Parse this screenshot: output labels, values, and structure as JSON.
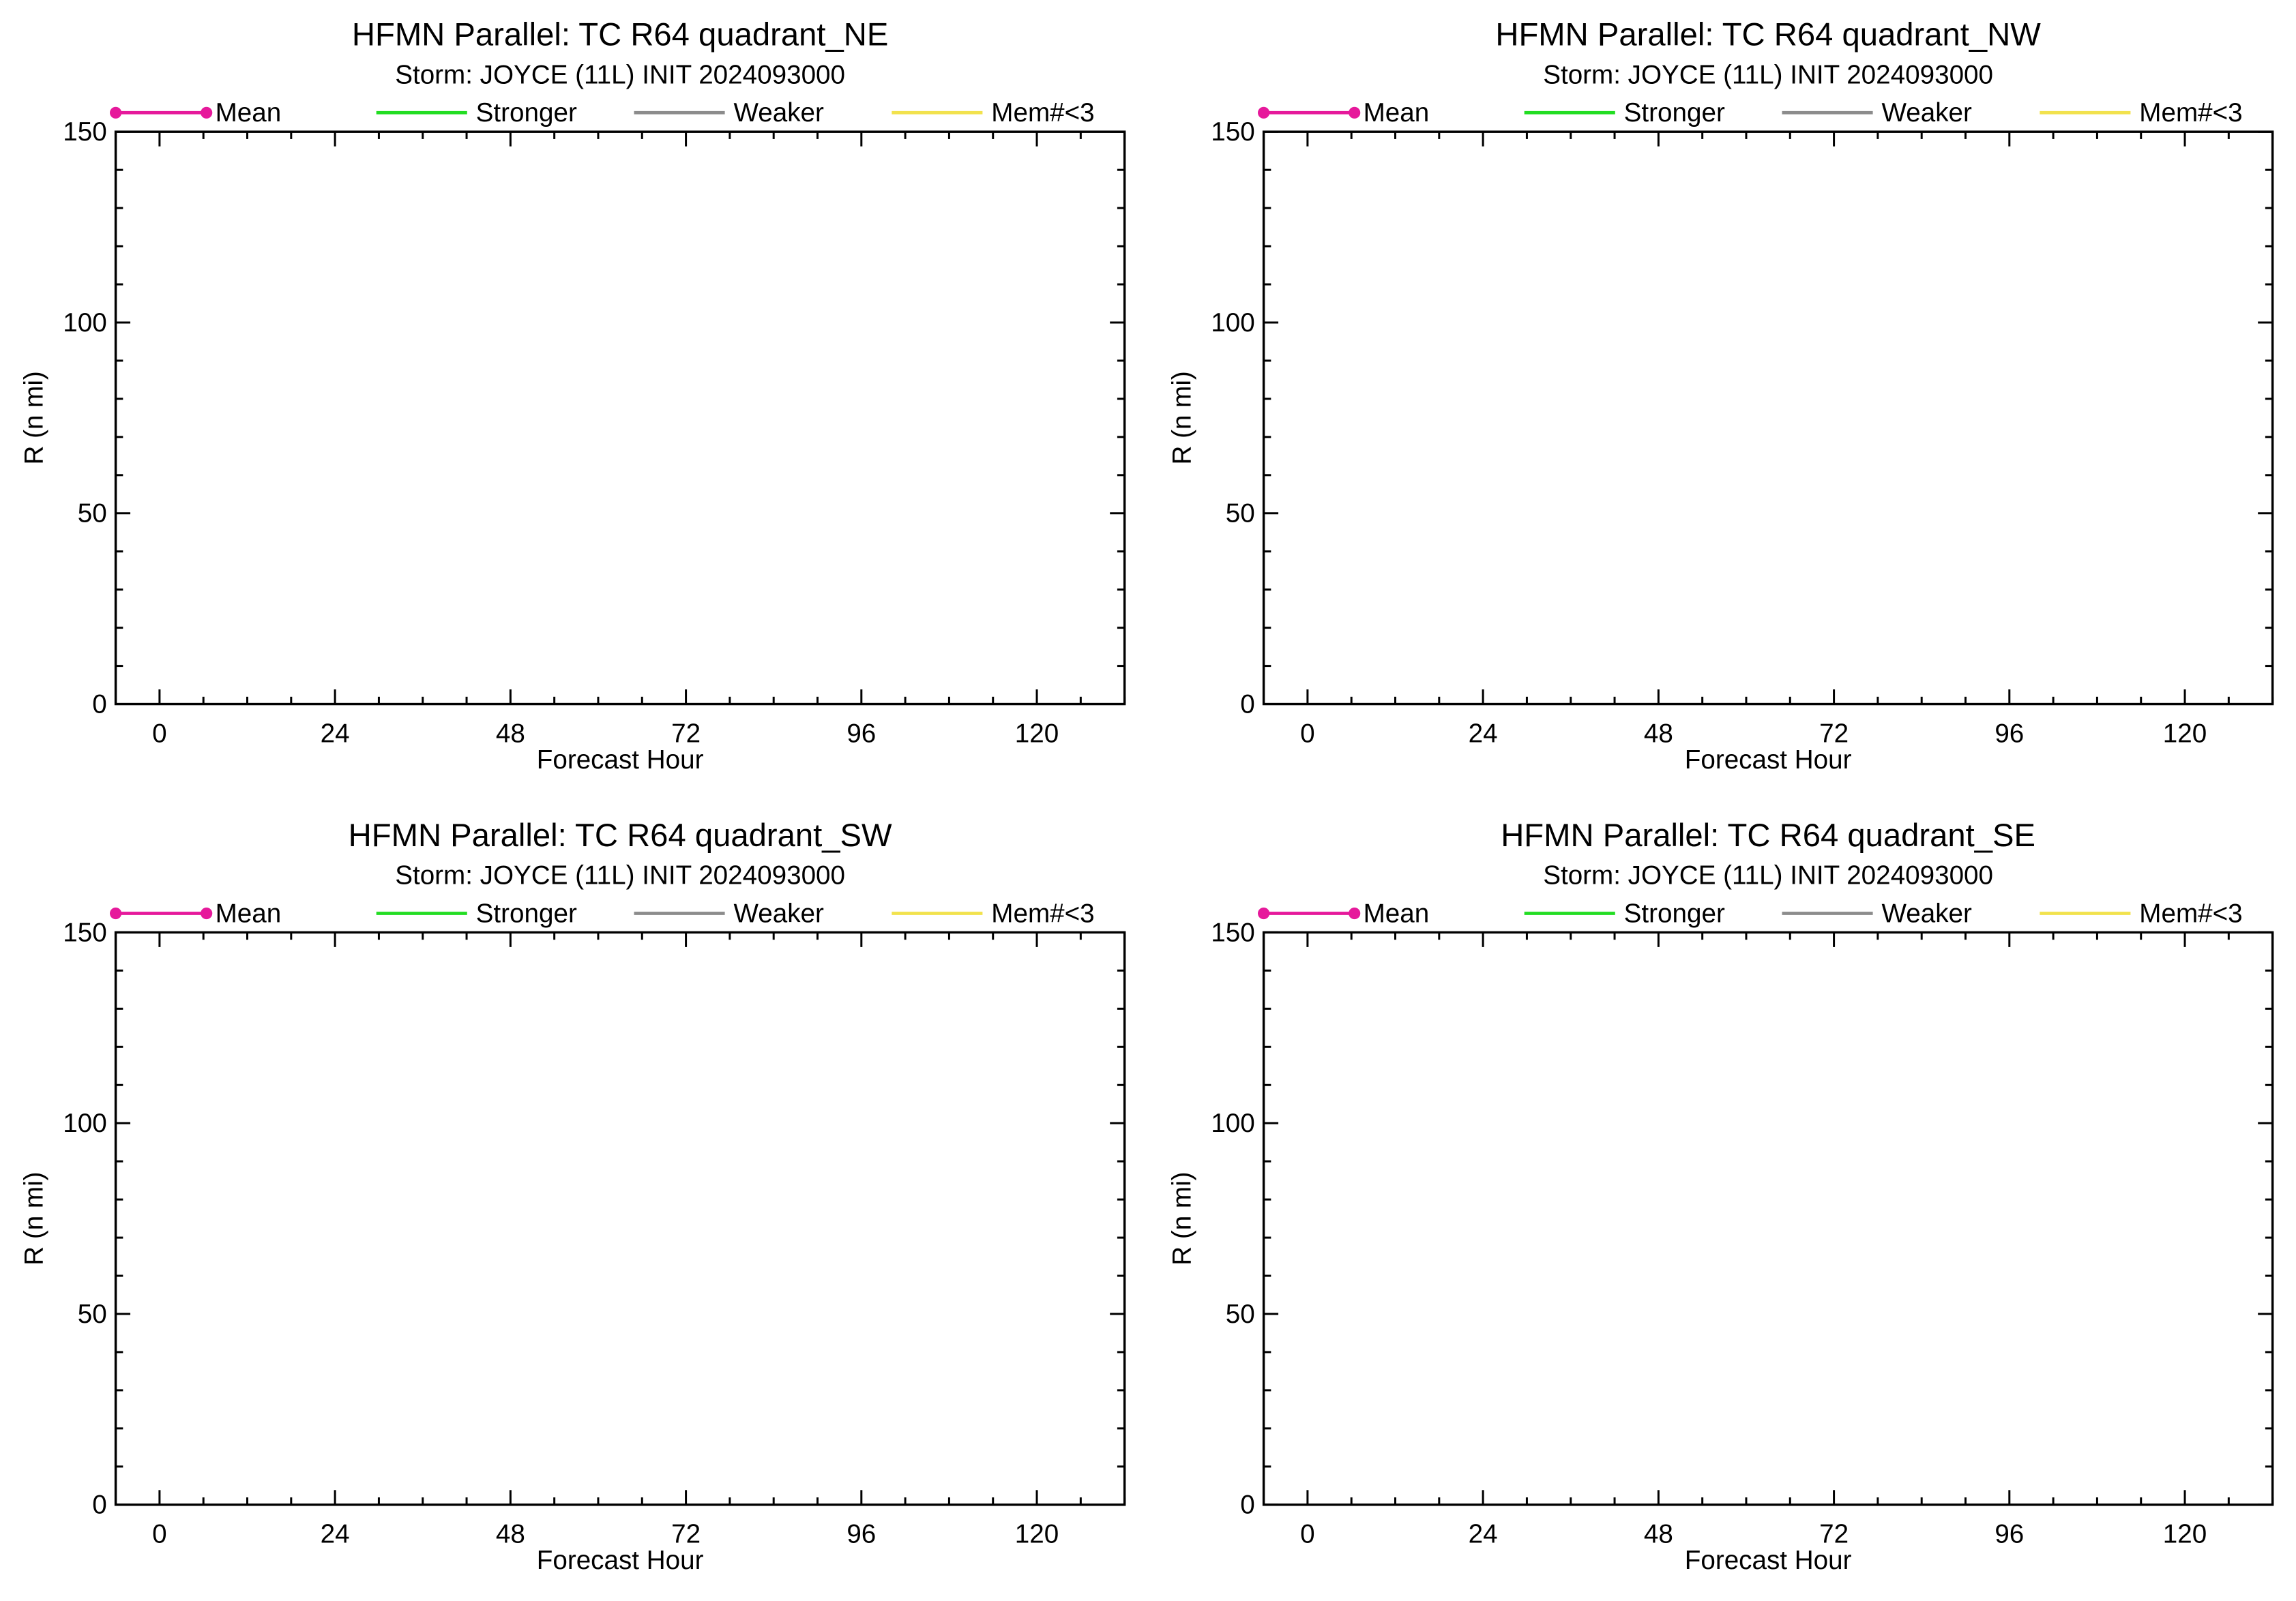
{
  "legend": {
    "items": [
      {
        "label": "Mean",
        "color": "#e6199b",
        "markers": true
      },
      {
        "label": "Stronger",
        "color": "#22dd22",
        "markers": false
      },
      {
        "label": "Weaker",
        "color": "#8c8c8c",
        "markers": false
      },
      {
        "label": "Mem#<3",
        "color": "#f2e24d",
        "markers": false
      }
    ]
  },
  "chart_data": [
    {
      "type": "line",
      "title": "HFMN Parallel: TC  R64 quadrant_NE",
      "subtitle": "Storm: JOYCE (11L) INIT 2024093000",
      "xlabel": "Forecast Hour",
      "ylabel": "R (n mi)",
      "xlim": [
        -6,
        132
      ],
      "ylim": [
        0,
        150
      ],
      "xticks": [
        0,
        24,
        48,
        72,
        96,
        120
      ],
      "yticks": [
        0,
        50,
        100,
        150
      ],
      "grid": false,
      "legend_placement": "top",
      "series": [
        {
          "name": "Mean",
          "x": [],
          "values": []
        },
        {
          "name": "Stronger",
          "x": [],
          "values": []
        },
        {
          "name": "Weaker",
          "x": [],
          "values": []
        },
        {
          "name": "Mem#<3",
          "x": [],
          "values": []
        }
      ]
    },
    {
      "type": "line",
      "title": "HFMN Parallel: TC  R64 quadrant_NW",
      "subtitle": "Storm: JOYCE (11L) INIT 2024093000",
      "xlabel": "Forecast Hour",
      "ylabel": "R (n mi)",
      "xlim": [
        -6,
        132
      ],
      "ylim": [
        0,
        150
      ],
      "xticks": [
        0,
        24,
        48,
        72,
        96,
        120
      ],
      "yticks": [
        0,
        50,
        100,
        150
      ],
      "grid": false,
      "legend_placement": "top",
      "series": [
        {
          "name": "Mean",
          "x": [],
          "values": []
        },
        {
          "name": "Stronger",
          "x": [],
          "values": []
        },
        {
          "name": "Weaker",
          "x": [],
          "values": []
        },
        {
          "name": "Mem#<3",
          "x": [],
          "values": []
        }
      ]
    },
    {
      "type": "line",
      "title": "HFMN Parallel: TC  R64 quadrant_SW",
      "subtitle": "Storm: JOYCE (11L) INIT 2024093000",
      "xlabel": "Forecast Hour",
      "ylabel": "R (n mi)",
      "xlim": [
        -6,
        132
      ],
      "ylim": [
        0,
        150
      ],
      "xticks": [
        0,
        24,
        48,
        72,
        96,
        120
      ],
      "yticks": [
        0,
        50,
        100,
        150
      ],
      "grid": false,
      "legend_placement": "top",
      "series": [
        {
          "name": "Mean",
          "x": [],
          "values": []
        },
        {
          "name": "Stronger",
          "x": [],
          "values": []
        },
        {
          "name": "Weaker",
          "x": [],
          "values": []
        },
        {
          "name": "Mem#<3",
          "x": [],
          "values": []
        }
      ]
    },
    {
      "type": "line",
      "title": "HFMN Parallel: TC  R64 quadrant_SE",
      "subtitle": "Storm: JOYCE (11L) INIT 2024093000",
      "xlabel": "Forecast Hour",
      "ylabel": "R (n mi)",
      "xlim": [
        -6,
        132
      ],
      "ylim": [
        0,
        150
      ],
      "xticks": [
        0,
        24,
        48,
        72,
        96,
        120
      ],
      "yticks": [
        0,
        50,
        100,
        150
      ],
      "grid": false,
      "legend_placement": "top",
      "series": [
        {
          "name": "Mean",
          "x": [],
          "values": []
        },
        {
          "name": "Stronger",
          "x": [],
          "values": []
        },
        {
          "name": "Weaker",
          "x": [],
          "values": []
        },
        {
          "name": "Mem#<3",
          "x": [],
          "values": []
        }
      ]
    }
  ]
}
